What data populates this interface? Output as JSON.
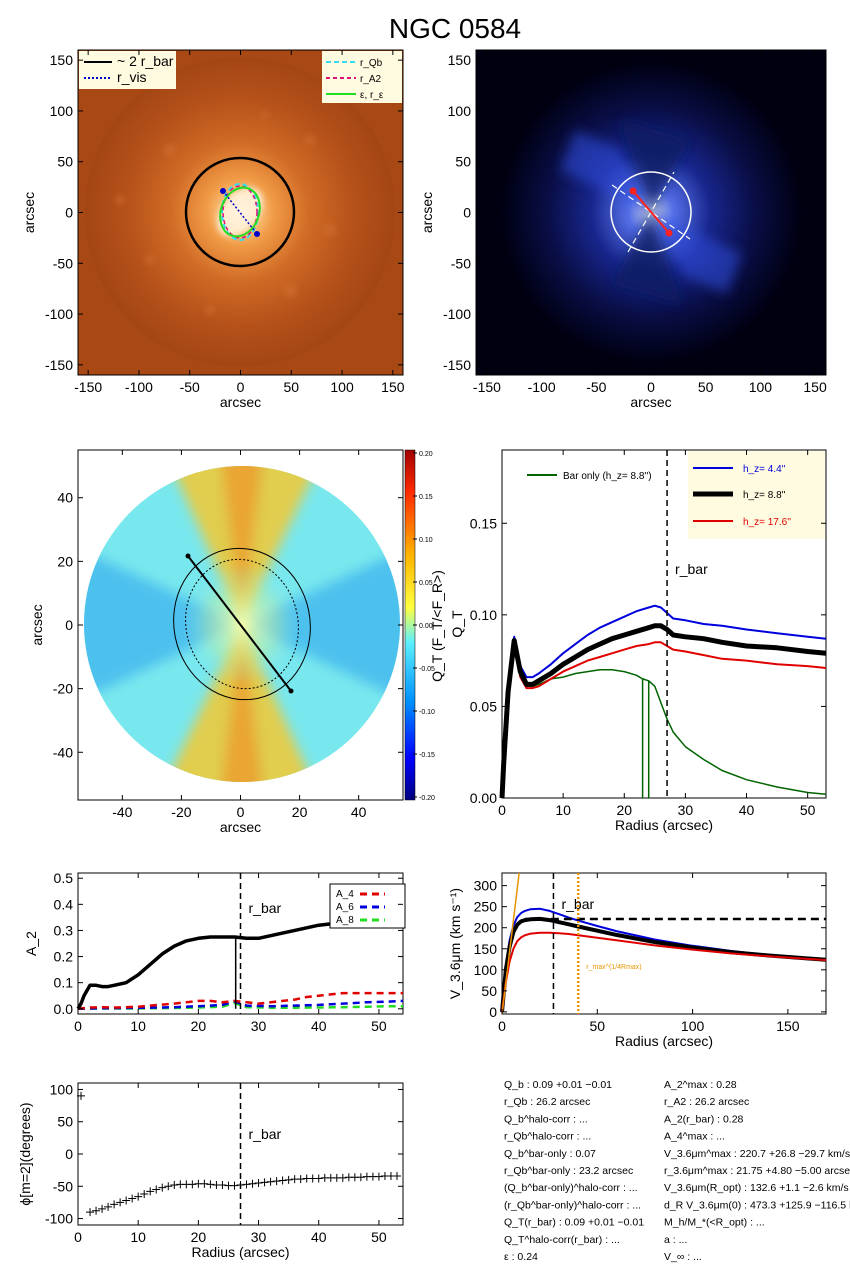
{
  "title": "NGC 0584",
  "colors": {
    "blue": "#0000dd",
    "black": "#000000",
    "red": "#e00000",
    "green": "#006400",
    "orange": "#e69500",
    "lime": "#22dd22",
    "cyan": "#33ddee",
    "magenta": "#dd1177"
  },
  "chart_data": [
    {
      "id": "image-ellipses",
      "type": "image",
      "xlabel": "arcsec",
      "ylabel": "arcsec",
      "xlim": [
        -160,
        160
      ],
      "ylim": [
        -160,
        160
      ],
      "xticks": [
        -150,
        -100,
        -50,
        0,
        50,
        100,
        150
      ],
      "yticks": [
        -150,
        -100,
        -50,
        0,
        50,
        100,
        150
      ],
      "legend_left": [
        "~ 2 r_bar",
        "r_vis"
      ],
      "legend_right": [
        "r_Qb",
        "r_A2",
        "ε, r_ε"
      ]
    },
    {
      "id": "image-bar",
      "type": "image",
      "xlabel": "arcsec",
      "ylabel": "arcsec",
      "xlim": [
        -160,
        160
      ],
      "ylim": [
        -160,
        160
      ],
      "xticks": [
        -150,
        -100,
        -50,
        0,
        50,
        100,
        150
      ],
      "yticks": [
        -150,
        -100,
        -50,
        0,
        50,
        100,
        150
      ]
    },
    {
      "id": "force-map",
      "type": "heatmap",
      "xlabel": "arcsec",
      "ylabel": "arcsec",
      "xlim": [
        -55,
        55
      ],
      "ylim": [
        -55,
        55
      ],
      "xticks": [
        -40,
        -20,
        0,
        20,
        40
      ],
      "yticks": [
        -40,
        -20,
        0,
        20,
        40
      ],
      "colorbar_label": "Q_T (F_T/<F_R>)",
      "colorbar_ticks": [
        "0.20",
        "0.15",
        "0.10",
        "0.05",
        "0.00",
        "-0.05",
        "-0.10",
        "-0.15",
        "-0.20"
      ],
      "colorbar_range": [
        -0.2,
        0.2
      ]
    },
    {
      "id": "qt-profile",
      "type": "line",
      "xlabel": "Radius (arcsec)",
      "ylabel": "Q_T",
      "xlim": [
        0,
        53
      ],
      "ylim": [
        0,
        0.19
      ],
      "xticks": [
        0,
        10,
        20,
        30,
        40,
        50
      ],
      "yticks": [
        "0.00",
        "0.05",
        "0.10",
        "0.15"
      ],
      "r_bar": 27,
      "r_bar_label": "r_bar",
      "bar_only_label": "Bar only (h_z=  8.8'')",
      "legend": [
        "h_z=   4.4''",
        "h_z=   8.8''",
        "h_z=  17.6''"
      ],
      "series": [
        {
          "name": "h_z=   4.4''",
          "color": "#0000dd",
          "width": 2,
          "x": [
            0,
            0.3,
            1,
            2,
            3,
            4,
            5,
            6,
            8,
            10,
            12,
            14,
            16,
            18,
            20,
            22,
            24,
            25,
            26,
            27,
            28,
            30,
            33,
            36,
            40,
            45,
            50,
            53
          ],
          "y": [
            0,
            0.02,
            0.06,
            0.088,
            0.072,
            0.066,
            0.066,
            0.068,
            0.073,
            0.079,
            0.084,
            0.089,
            0.093,
            0.096,
            0.099,
            0.102,
            0.104,
            0.105,
            0.104,
            0.101,
            0.098,
            0.097,
            0.095,
            0.094,
            0.092,
            0.09,
            0.088,
            0.087
          ]
        },
        {
          "name": "h_z=   8.8''",
          "color": "#000000",
          "width": 5,
          "x": [
            0,
            0.3,
            1,
            2,
            3,
            4,
            5,
            6,
            8,
            10,
            12,
            14,
            16,
            18,
            20,
            22,
            24,
            25,
            26,
            27,
            28,
            30,
            33,
            36,
            40,
            45,
            50,
            53
          ],
          "y": [
            0,
            0.02,
            0.058,
            0.086,
            0.069,
            0.062,
            0.062,
            0.064,
            0.068,
            0.073,
            0.077,
            0.081,
            0.084,
            0.087,
            0.089,
            0.091,
            0.093,
            0.094,
            0.094,
            0.092,
            0.089,
            0.088,
            0.087,
            0.085,
            0.083,
            0.082,
            0.08,
            0.079
          ]
        },
        {
          "name": "h_z=  17.6''",
          "color": "#e00000",
          "width": 2,
          "x": [
            0,
            0.3,
            1,
            2,
            3,
            4,
            5,
            6,
            8,
            10,
            12,
            14,
            16,
            18,
            20,
            22,
            24,
            25,
            26,
            27,
            28,
            30,
            33,
            36,
            40,
            45,
            50,
            53
          ],
          "y": [
            0,
            0.02,
            0.055,
            0.083,
            0.066,
            0.06,
            0.06,
            0.061,
            0.065,
            0.069,
            0.072,
            0.075,
            0.077,
            0.079,
            0.081,
            0.083,
            0.084,
            0.085,
            0.085,
            0.083,
            0.081,
            0.08,
            0.078,
            0.076,
            0.075,
            0.073,
            0.072,
            0.071
          ]
        },
        {
          "name": "Bar only (h_z=  8.8'')",
          "color": "#006400",
          "width": 1.5,
          "x": [
            0,
            0.3,
            1,
            2,
            3,
            4,
            5,
            6,
            8,
            10,
            12,
            14,
            16,
            18,
            20,
            22,
            23,
            23,
            23,
            24,
            24,
            24,
            25,
            26,
            27,
            28,
            30,
            33,
            36,
            40,
            45,
            50,
            53
          ],
          "y": [
            0,
            0.02,
            0.057,
            0.085,
            0.068,
            0.061,
            0.061,
            0.062,
            0.065,
            0.066,
            0.068,
            0.069,
            0.07,
            0.07,
            0.069,
            0.067,
            0.065,
            0.0,
            0.065,
            0.064,
            0.0,
            0.064,
            0.061,
            0.052,
            0.043,
            0.036,
            0.028,
            0.021,
            0.015,
            0.01,
            0.006,
            0.003,
            0.002
          ]
        }
      ]
    },
    {
      "id": "a2-profile",
      "type": "line",
      "xlabel": "",
      "ylabel": "A_2",
      "xlim": [
        0,
        54
      ],
      "ylim": [
        -0.02,
        0.52
      ],
      "xticks": [
        0,
        10,
        20,
        30,
        40,
        50
      ],
      "yticks": [
        "0.0",
        "0.1",
        "0.2",
        "0.3",
        "0.4",
        "0.5"
      ],
      "r_bar": 27,
      "r_bar_label": "r_bar",
      "legend": [
        "A_4",
        "A_6",
        "A_8"
      ],
      "series": [
        {
          "name": "A_2",
          "color": "#000000",
          "width": 3.5,
          "x": [
            0,
            0.5,
            1,
            2,
            3,
            4,
            5,
            6,
            8,
            10,
            12,
            14,
            16,
            18,
            20,
            22,
            24,
            26,
            28,
            30,
            32,
            34,
            36,
            38,
            40,
            42,
            44,
            46,
            48,
            50,
            52,
            54
          ],
          "y": [
            0,
            0.02,
            0.05,
            0.09,
            0.09,
            0.085,
            0.085,
            0.09,
            0.1,
            0.13,
            0.17,
            0.21,
            0.24,
            0.26,
            0.27,
            0.275,
            0.275,
            0.275,
            0.27,
            0.27,
            0.28,
            0.29,
            0.3,
            0.31,
            0.32,
            0.325,
            0.33,
            0.33,
            0.33,
            0.33,
            0.335,
            0.34
          ]
        },
        {
          "name": "A_4",
          "color": "#e00000",
          "width": 2.5,
          "dash": "7,5",
          "x": [
            0,
            2,
            4,
            6,
            8,
            10,
            12,
            14,
            16,
            18,
            20,
            22,
            24,
            26,
            28,
            30,
            32,
            34,
            36,
            38,
            40,
            42,
            44,
            46,
            48,
            50,
            52,
            54
          ],
          "y": [
            0,
            0.005,
            0.006,
            0.005,
            0.006,
            0.008,
            0.012,
            0.016,
            0.02,
            0.025,
            0.03,
            0.03,
            0.025,
            0.03,
            0.025,
            0.02,
            0.025,
            0.03,
            0.035,
            0.045,
            0.05,
            0.055,
            0.06,
            0.06,
            0.06,
            0.06,
            0.06,
            0.06
          ]
        },
        {
          "name": "A_6",
          "color": "#0000dd",
          "width": 2.5,
          "dash": "7,5",
          "x": [
            0,
            4,
            8,
            12,
            16,
            20,
            24,
            26,
            28,
            32,
            36,
            40,
            44,
            48,
            52,
            54
          ],
          "y": [
            0,
            0.002,
            0.003,
            0.004,
            0.006,
            0.01,
            0.015,
            0.028,
            0.012,
            0.01,
            0.012,
            0.015,
            0.02,
            0.025,
            0.028,
            0.03
          ]
        },
        {
          "name": "A_8",
          "color": "#22dd22",
          "width": 2.5,
          "dash": "7,5",
          "x": [
            0,
            4,
            8,
            12,
            16,
            20,
            24,
            26,
            28,
            32,
            36,
            40,
            44,
            48,
            52,
            54
          ],
          "y": [
            0,
            0.001,
            0.001,
            0.002,
            0.003,
            0.005,
            0.008,
            0.022,
            0.006,
            0.004,
            0.004,
            0.005,
            0.006,
            0.008,
            0.01,
            0.01
          ]
        }
      ]
    },
    {
      "id": "rotation-curve",
      "type": "line",
      "xlabel": "Radius (arcsec)",
      "ylabel": "V_3.6μm (km s⁻¹)",
      "xlim": [
        0,
        170
      ],
      "ylim": [
        -5,
        330
      ],
      "xticks": [
        0,
        50,
        100,
        150
      ],
      "yticks": [
        0,
        50,
        100,
        150,
        200,
        250,
        300
      ],
      "r_bar": 27,
      "r_bar_label": "r_bar",
      "r_max_label": "r_max^(1/4Rmax)",
      "r_max": 40,
      "vflat": 220.7,
      "series": [
        {
          "name": "h_z=   4.4''",
          "color": "#0000dd",
          "width": 2,
          "x": [
            0,
            2,
            4,
            6,
            8,
            10,
            12,
            15,
            20,
            25,
            30,
            35,
            40,
            50,
            60,
            80,
            100,
            120,
            140,
            160,
            170
          ],
          "y": [
            0,
            110,
            170,
            205,
            225,
            235,
            240,
            244,
            245,
            240,
            232,
            224,
            217,
            204,
            192,
            172,
            157,
            145,
            135,
            127,
            124
          ]
        },
        {
          "name": "h_z=   8.8''",
          "color": "#000000",
          "width": 4,
          "x": [
            0,
            2,
            4,
            6,
            8,
            10,
            12,
            15,
            20,
            25,
            30,
            35,
            40,
            50,
            60,
            80,
            100,
            120,
            140,
            160,
            170
          ],
          "y": [
            0,
            100,
            155,
            190,
            207,
            215,
            218,
            220,
            221,
            218,
            213,
            208,
            203,
            193,
            183,
            166,
            153,
            142,
            134,
            127,
            124
          ]
        },
        {
          "name": "h_z=  17.6''",
          "color": "#e00000",
          "width": 2,
          "x": [
            0,
            2,
            4,
            6,
            8,
            10,
            12,
            15,
            20,
            25,
            30,
            35,
            40,
            50,
            60,
            80,
            100,
            120,
            140,
            160,
            170
          ],
          "y": [
            0,
            70,
            120,
            150,
            168,
            177,
            182,
            186,
            188,
            188,
            187,
            185,
            182,
            176,
            170,
            158,
            148,
            139,
            132,
            126,
            123
          ]
        }
      ]
    },
    {
      "id": "phase-profile",
      "type": "scatter",
      "xlabel": "Radius (arcsec)",
      "ylabel": "ϕ[m=2](degrees)",
      "xlim": [
        0,
        54
      ],
      "ylim": [
        -110,
        110
      ],
      "xticks": [
        0,
        10,
        20,
        30,
        40,
        50
      ],
      "yticks": [
        -100,
        -50,
        0,
        50,
        100
      ],
      "r_bar": 27,
      "r_bar_label": "r_bar",
      "points": {
        "x": [
          0.5,
          2,
          3,
          4,
          5,
          6,
          7,
          8,
          9,
          10,
          11,
          12,
          13,
          14,
          15,
          16,
          17,
          18,
          19,
          20,
          21,
          22,
          23,
          24,
          25,
          26,
          27,
          28,
          29,
          30,
          31,
          32,
          33,
          34,
          35,
          36,
          37,
          38,
          39,
          40,
          41,
          42,
          43,
          44,
          45,
          46,
          47,
          48,
          49,
          50,
          51,
          52,
          53
        ],
        "y": [
          90,
          -90,
          -88,
          -85,
          -82,
          -78,
          -75,
          -72,
          -69,
          -66,
          -62,
          -58,
          -55,
          -52,
          -50,
          -48,
          -47,
          -47,
          -47,
          -46,
          -46,
          -47,
          -48,
          -48,
          -49,
          -49,
          -48,
          -47,
          -46,
          -45,
          -44,
          -43,
          -42,
          -41,
          -40,
          -39,
          -39,
          -38,
          -38,
          -38,
          -37,
          -37,
          -37,
          -37,
          -36,
          -36,
          -36,
          -35,
          -35,
          -35,
          -34,
          -34,
          -34
        ]
      }
    }
  ],
  "stats": {
    "left": [
      "Q_b :  0.09 +0.01 −0.01",
      "r_Qb :  26.2  arcsec",
      "Q_b^halo-corr : ...",
      "r_Qb^halo-corr : ...",
      "Q_b^bar-only :  0.07",
      "r_Qb^bar-only :  23.2 arcsec",
      "(Q_b^bar-only)^halo-corr : ...",
      "(r_Qb^bar-only)^halo-corr : ...",
      "Q_T(r_bar) :  0.09 +0.01 −0.01",
      "Q_T^halo-corr(r_bar) : ...",
      "ε :  0.24"
    ],
    "right": [
      "A_2^max :  0.28",
      "r_A2 :  26.2 arcsec",
      "A_2(r_bar) :  0.28",
      "A_4^max : ...",
      "V_3.6μm^max :  220.7 +26.8 −29.7 km/s",
      "r_3.6μm^max :  21.75 +4.80 −5.00  arcsec",
      "V_3.6μm(R_opt) :  132.6 +1.1 −2.6 km/s",
      "d_R V_3.6μm(0) :  473.3 +125.9 −116.5 km/s/kpc",
      "M_h/M_*(<R_opt) : ...",
      "a : ...",
      "V_∞ : ..."
    ]
  }
}
